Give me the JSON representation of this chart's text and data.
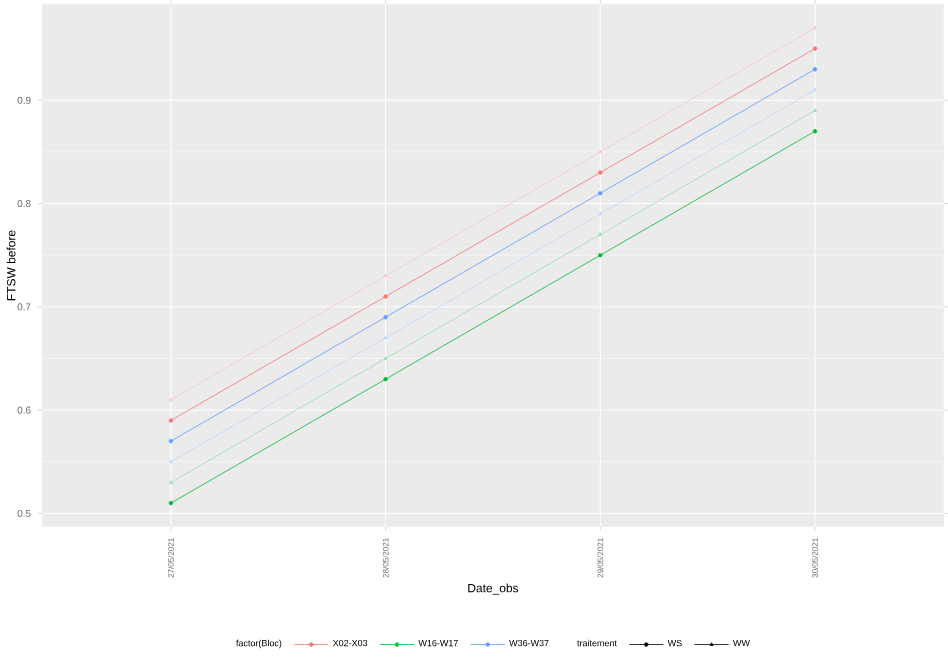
{
  "chart_data": {
    "type": "line",
    "xlabel": "Date_obs",
    "ylabel": "FTSW before",
    "legend_title": "factor(Bloc)",
    "categories": [
      "27/05/2021",
      "28/05/2021",
      "29/05/2021",
      "30/05/2021"
    ],
    "series": [
      {
        "name": "X02-X03",
        "color": "#f8766d",
        "marker": "circle",
        "values": [
          0.59,
          0.71,
          0.83,
          0.95
        ]
      },
      {
        "color": "#fbc6c1",
        "marker": "triangle",
        "values": [
          0.61,
          0.73,
          0.85,
          0.97
        ]
      },
      {
        "name": "W16-W17",
        "color": "#00ba38",
        "marker": "circle",
        "values": [
          0.51,
          0.63,
          0.75,
          0.87
        ]
      },
      {
        "color": "#99e0ae",
        "marker": "triangle",
        "values": [
          0.53,
          0.65,
          0.77,
          0.89
        ]
      },
      {
        "name": "W36-W37",
        "color": "#619cff",
        "marker": "circle",
        "values": [
          0.57,
          0.69,
          0.81,
          0.93
        ]
      },
      {
        "color": "#c0d7ff",
        "marker": "triangle",
        "values": [
          0.55,
          0.67,
          0.79,
          0.91
        ]
      }
    ],
    "annotations": [
      "traitement",
      "WS",
      "WW"
    ],
    "ylim": [
      0.487,
      0.993
    ],
    "yticks": [
      0.5,
      0.6,
      0.7,
      0.8,
      0.9
    ],
    "grid": true,
    "legend": "bottom"
  }
}
